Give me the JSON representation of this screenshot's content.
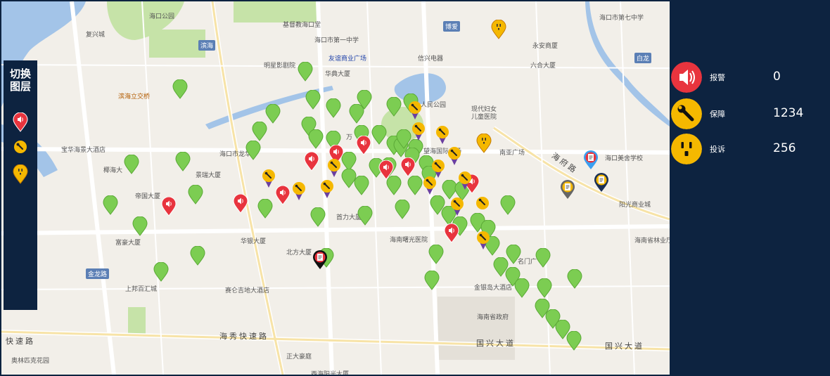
{
  "layer_panel": {
    "title_line1": "切换",
    "title_line2": "图层",
    "layers": [
      {
        "name": "alarm",
        "icon": "speaker-icon",
        "color": "#e8343e"
      },
      {
        "name": "repair",
        "icon": "wrench-icon",
        "color": "#f5b800"
      },
      {
        "name": "complaint",
        "icon": "outlet-icon",
        "color": "#f5b800"
      }
    ]
  },
  "stats": [
    {
      "label": "报警",
      "value": "0",
      "icon": "speaker-icon",
      "color": "#e8343e"
    },
    {
      "label": "保障",
      "value": "1234",
      "icon": "wrench-icon",
      "color": "#f5b800"
    },
    {
      "label": "投诉",
      "value": "256",
      "icon": "outlet-icon",
      "color": "#f5b800"
    }
  ],
  "map_labels": {
    "l1": "海口公园",
    "l2": "复兴城",
    "l3": "基督教海口堂",
    "l4": "海口市第一中学",
    "l5": "友谊商业广场",
    "l6": "信兴电器",
    "l7": "明星影剧院",
    "l8": "华典大厦",
    "l9": "滨海立交桥",
    "l10": "人民公园",
    "l11": "现代妇女",
    "l12": "儿童医院",
    "l13": "海口市第七中学",
    "l14": "永安商厦",
    "l15": "六合大厦",
    "l16": "宝华海景大酒店",
    "l17": "海口市龙华",
    "l18": "椰海大",
    "l19": "景瑞大厦",
    "l20": "望海国际广场",
    "l21": "南亚广场",
    "l22": "海口美舍学校",
    "l23": "帝国大厦",
    "l24": "首力大厦",
    "l25": "阳光商业城",
    "l26": "富豪大厦",
    "l27": "华银大厦",
    "l28": "北方大厦",
    "l29": "海南曙光医院",
    "l30": "海南省林业厅",
    "l31": "上邦百汇城",
    "l32": "赛仑吉地大酒店",
    "l33": "金银岛大酒店",
    "l34": "海南省政府",
    "l35": "奥林匹克花园",
    "l36": "正大豪庭",
    "l37": "西海阳光大厦",
    "l38": "万",
    "l39": "名门广",
    "r1": "海秀快速路",
    "r2": "国兴大道",
    "r3": "国兴大道",
    "r4": "海府路",
    "r5": "快速路",
    "d1": "滨海",
    "d2": "博爱",
    "d3": "白龙",
    "d4": "金龙路"
  },
  "pin_colors": {
    "green": "#7ccd52",
    "red": "#e8343e",
    "yellow": "#f5b800",
    "purple": "#6a3fa0",
    "navy": "#1a2f55"
  }
}
